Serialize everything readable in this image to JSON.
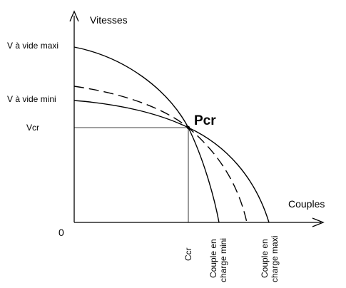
{
  "axes": {
    "y_title": "Vitesses",
    "x_title": "Couples",
    "origin": "0"
  },
  "y_labels": {
    "v_max": "V à vide maxi",
    "v_min": "V à vide mini",
    "v_cr": "Vcr"
  },
  "point": {
    "label": "Pcr"
  },
  "x_labels": {
    "ccr": "Ccr",
    "couple_min_line1": "Couple en",
    "couple_min_line2": "charge mini",
    "couple_max_line1": "Couple en",
    "couple_max_line2": "charge maxi"
  },
  "colors": {
    "ink": "#000000",
    "background": "#ffffff"
  }
}
